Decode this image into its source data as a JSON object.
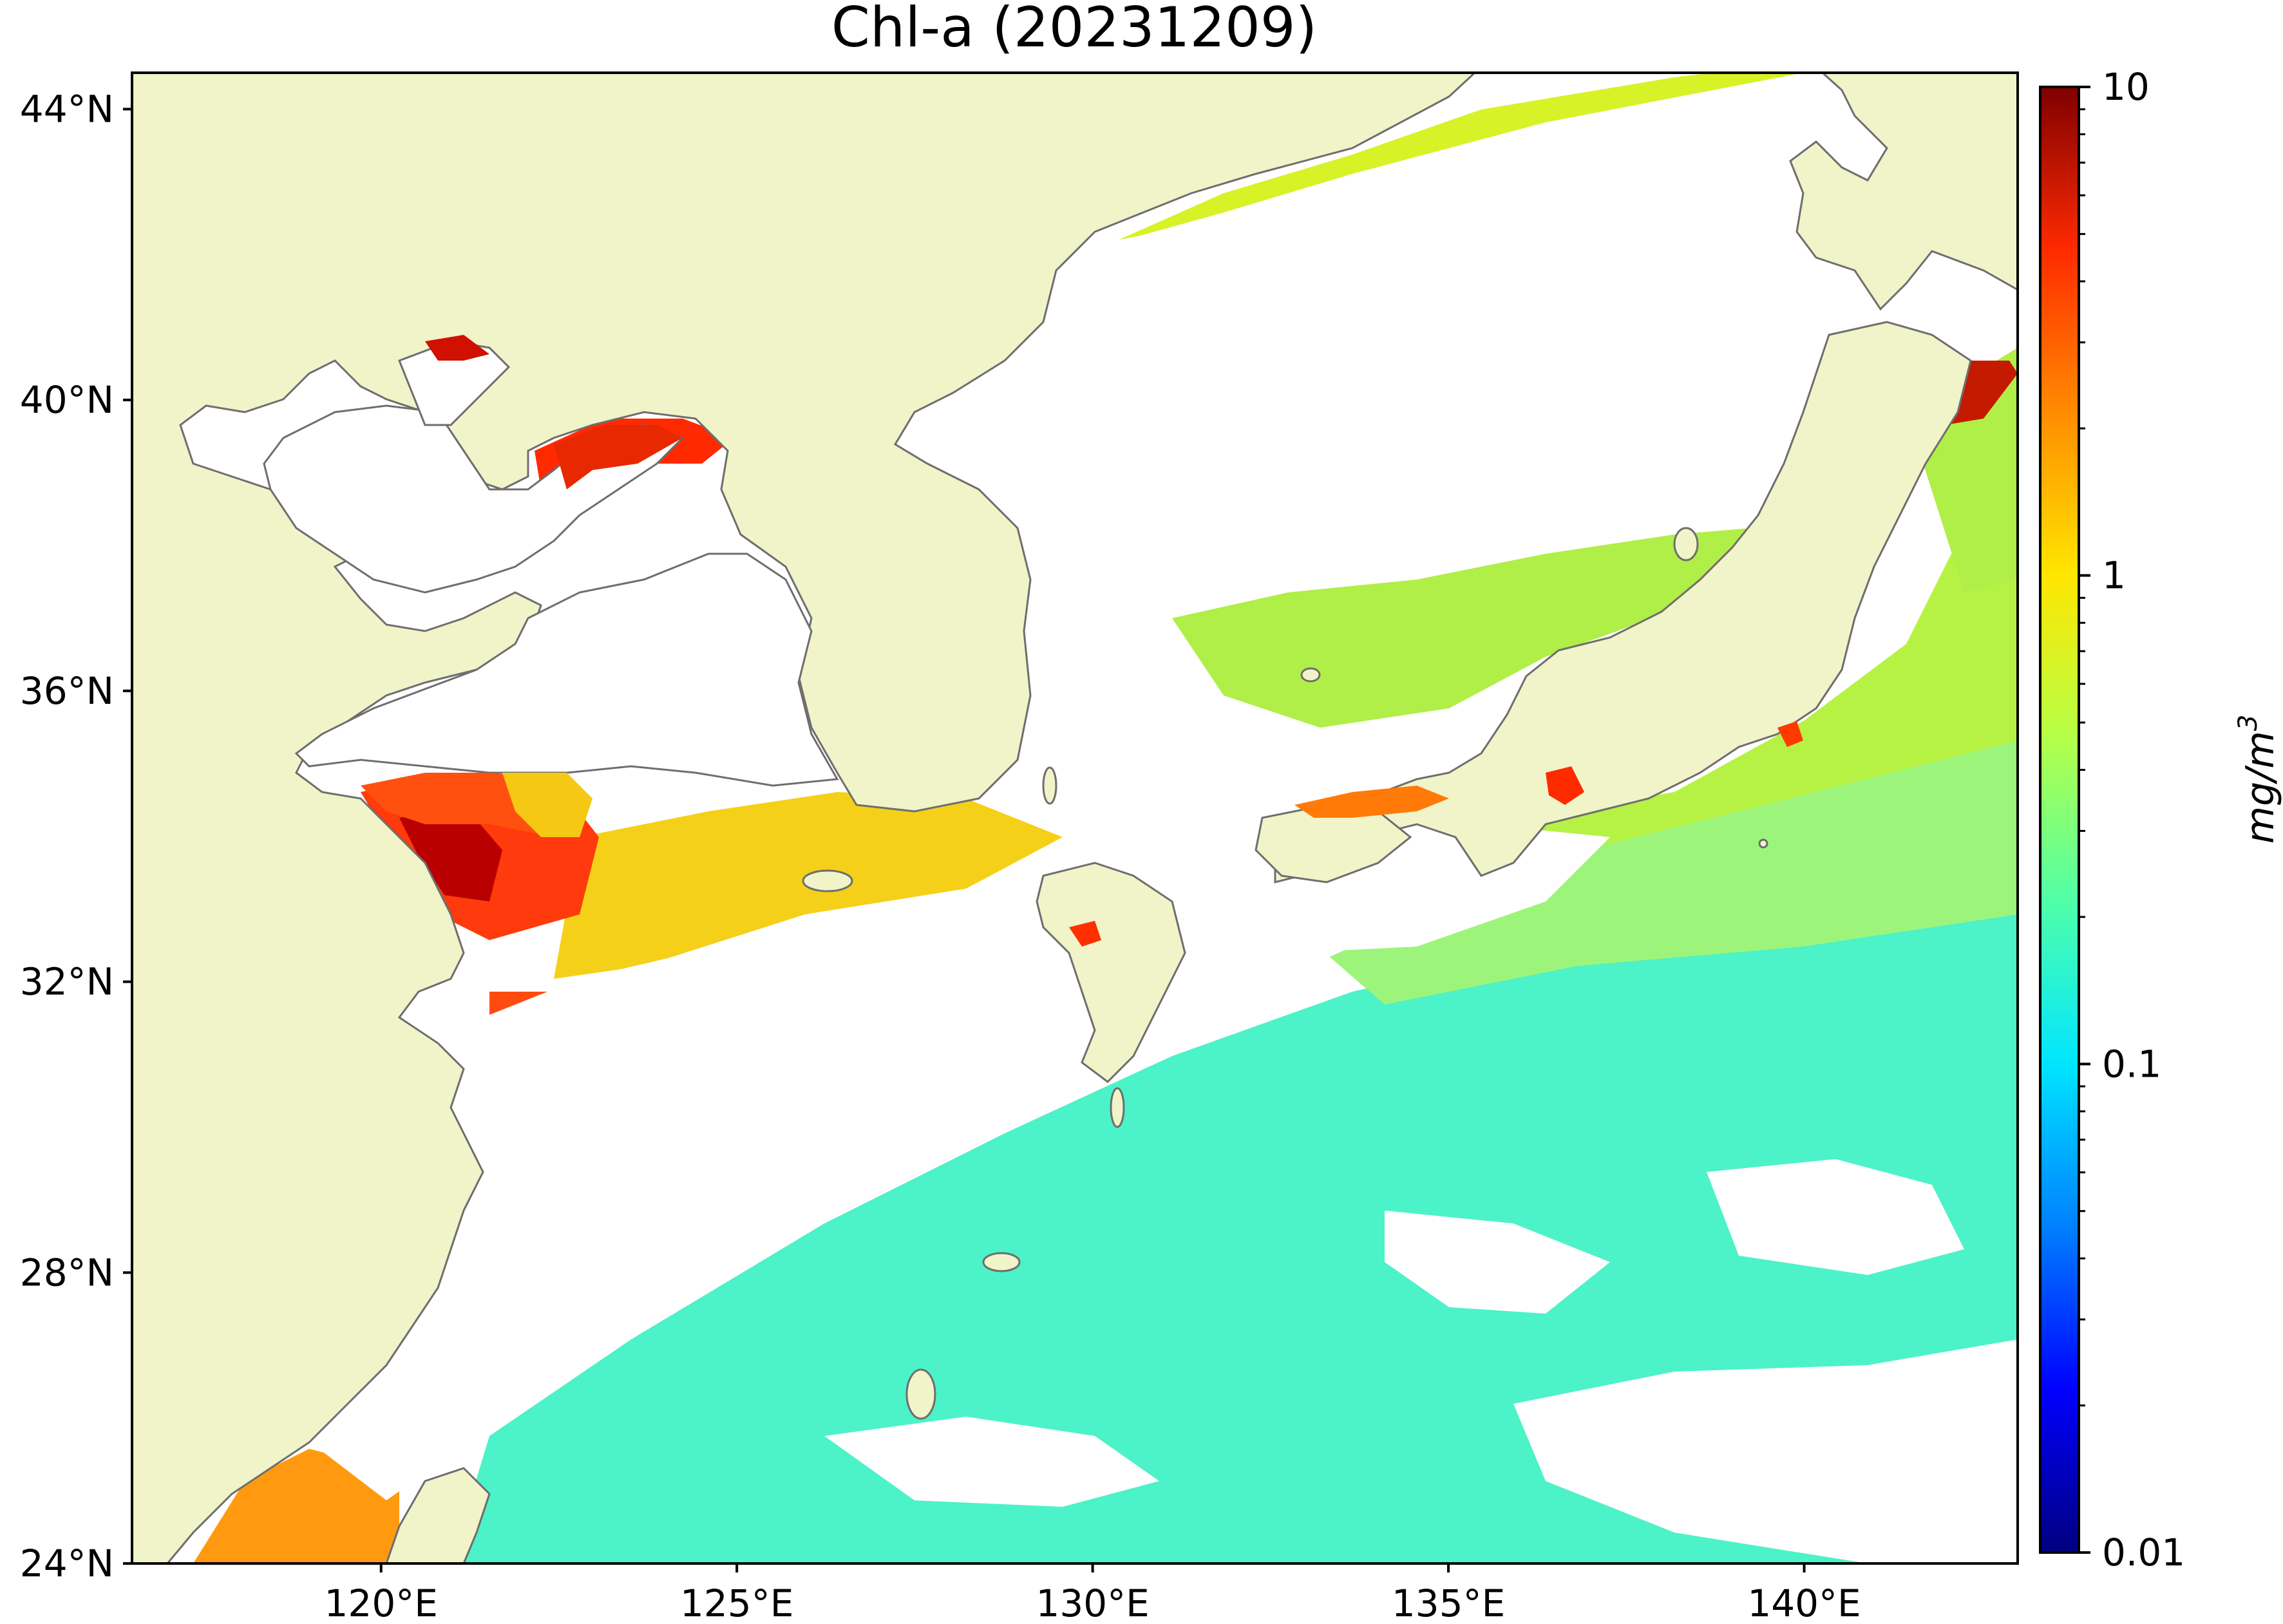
{
  "title": "Chl-a (20231209)",
  "map": {
    "projection": "lat-lon",
    "lon_range": [
      116.5,
      143.0
    ],
    "lat_range": [
      24.0,
      44.5
    ],
    "land_color": "#f0f4c8",
    "no_data_color": "#ffffff",
    "coastline_color": "#6e6e6e",
    "lat_ticks": [
      {
        "value": 44,
        "label": "44°N"
      },
      {
        "value": 40,
        "label": "40°N"
      },
      {
        "value": 36,
        "label": "36°N"
      },
      {
        "value": 32,
        "label": "32°N"
      },
      {
        "value": 28,
        "label": "28°N"
      },
      {
        "value": 24,
        "label": "24°N"
      }
    ],
    "lon_ticks": [
      {
        "value": 120,
        "label": "120°E"
      },
      {
        "value": 125,
        "label": "125°E"
      },
      {
        "value": 130,
        "label": "130°E"
      },
      {
        "value": 135,
        "label": "135°E"
      },
      {
        "value": 140,
        "label": "140°E"
      }
    ]
  },
  "colorbar": {
    "scale": "log",
    "min": 0.01,
    "max": 10,
    "colormap": "jet",
    "colors": [
      "#00007f",
      "#0000ff",
      "#0080ff",
      "#00e5ff",
      "#50ffa8",
      "#b4ff48",
      "#ffe600",
      "#ff8c00",
      "#ff2a00",
      "#7f0000"
    ],
    "ticks": [
      {
        "value": 10,
        "label": "10"
      },
      {
        "value": 1,
        "label": "1"
      },
      {
        "value": 0.1,
        "label": "0.1"
      },
      {
        "value": 0.01,
        "label": "0.01"
      }
    ],
    "unit": "mg/m",
    "unit_superscript": "3"
  }
}
